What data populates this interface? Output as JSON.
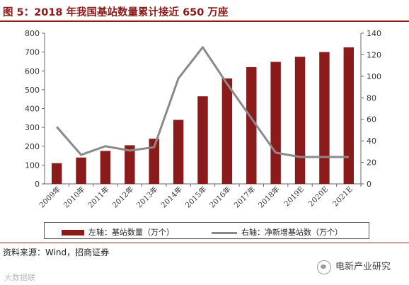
{
  "figure": {
    "title": "图 5：2018 年我国基站数量累计接近 650 万座",
    "source": "资料来源：Wind，招商证券",
    "watermark_left": "大数据联",
    "watermark_right": "电新产业研究"
  },
  "colors": {
    "bar": "#8b1a1a",
    "line": "#8a8a8a",
    "accent": "#8b1a1a"
  },
  "chart_data": {
    "type": "bar",
    "categories": [
      "2009年",
      "2010年",
      "2011年",
      "2012年",
      "2013年",
      "2014年",
      "2015年",
      "2016年",
      "2017年",
      "2018年",
      "2019E",
      "2020E",
      "2021E"
    ],
    "series": [
      {
        "name": "左轴：基站数量（万个）",
        "type": "bar",
        "axis": "left",
        "values": [
          110,
          140,
          175,
          205,
          240,
          340,
          465,
          560,
          620,
          648,
          675,
          700,
          725
        ]
      },
      {
        "name": "右轴：净新增基站数（万个）",
        "type": "line",
        "axis": "right",
        "values": [
          53,
          27,
          35,
          31,
          34,
          98,
          127,
          93,
          61,
          29,
          25,
          25,
          25
        ]
      }
    ],
    "y_left": {
      "min": 0,
      "max": 800,
      "ticks": [
        "0",
        "100",
        "200",
        "300",
        "400",
        "500",
        "600",
        "700",
        "800"
      ]
    },
    "y_right": {
      "min": 0,
      "max": 140,
      "ticks": [
        "0",
        "20",
        "40",
        "60",
        "80",
        "100",
        "120",
        "140"
      ]
    },
    "grid": false,
    "legend_position": "bottom"
  }
}
